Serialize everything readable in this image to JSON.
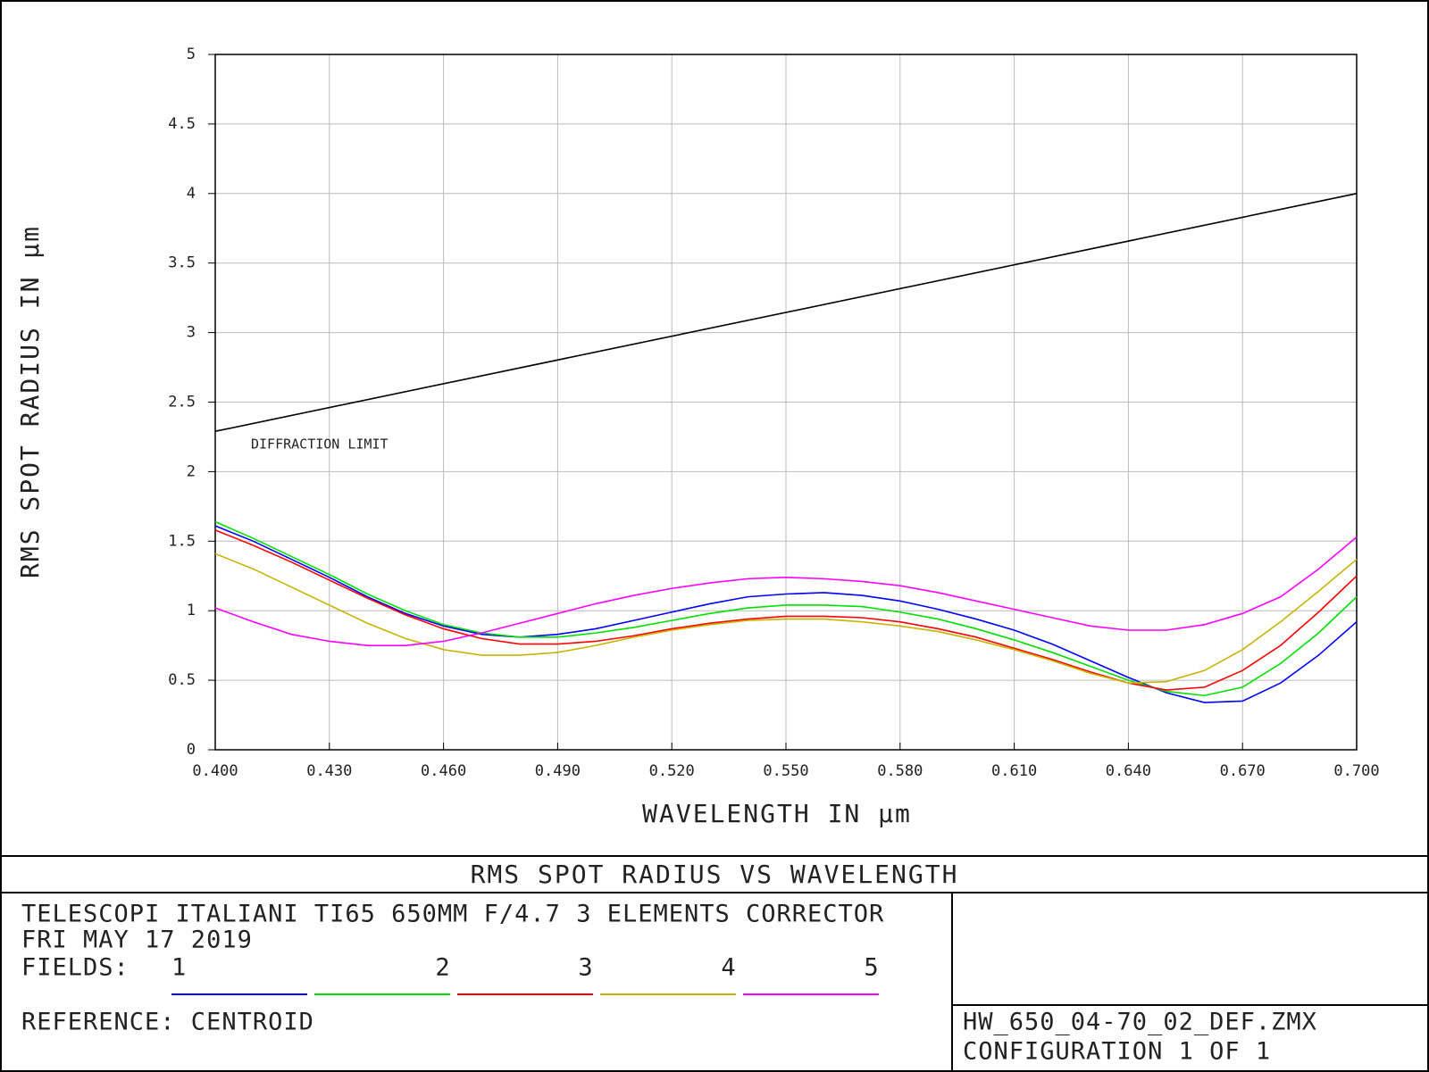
{
  "chart_data": {
    "type": "line",
    "title": "RMS SPOT RADIUS VS WAVELENGTH",
    "x_label": "WAVELENGTH IN µm",
    "y_label": "RMS SPOT RADIUS IN µm",
    "x": [
      0.4,
      0.41,
      0.42,
      0.43,
      0.44,
      0.45,
      0.46,
      0.47,
      0.48,
      0.49,
      0.5,
      0.51,
      0.52,
      0.53,
      0.54,
      0.55,
      0.56,
      0.57,
      0.58,
      0.59,
      0.6,
      0.61,
      0.62,
      0.63,
      0.64,
      0.65,
      0.66,
      0.67,
      0.68,
      0.69,
      0.7
    ],
    "series": [
      {
        "name": "1",
        "color": "#0000ff",
        "values": [
          1.61,
          1.5,
          1.37,
          1.24,
          1.1,
          0.98,
          0.89,
          0.83,
          0.81,
          0.83,
          0.87,
          0.93,
          0.99,
          1.05,
          1.1,
          1.12,
          1.13,
          1.11,
          1.07,
          1.01,
          0.94,
          0.86,
          0.76,
          0.64,
          0.52,
          0.41,
          0.34,
          0.35,
          0.48,
          0.68,
          0.92
        ]
      },
      {
        "name": "2",
        "color": "#00e000",
        "values": [
          1.64,
          1.52,
          1.39,
          1.26,
          1.12,
          1.0,
          0.9,
          0.84,
          0.81,
          0.81,
          0.84,
          0.88,
          0.93,
          0.98,
          1.02,
          1.04,
          1.04,
          1.03,
          0.99,
          0.94,
          0.87,
          0.79,
          0.7,
          0.6,
          0.5,
          0.42,
          0.39,
          0.45,
          0.62,
          0.84,
          1.1
        ]
      },
      {
        "name": "3",
        "color": "#ff0000",
        "values": [
          1.58,
          1.47,
          1.35,
          1.22,
          1.09,
          0.97,
          0.87,
          0.8,
          0.76,
          0.76,
          0.78,
          0.82,
          0.87,
          0.91,
          0.94,
          0.96,
          0.96,
          0.95,
          0.92,
          0.87,
          0.81,
          0.73,
          0.65,
          0.56,
          0.48,
          0.43,
          0.45,
          0.57,
          0.75,
          0.99,
          1.25
        ]
      },
      {
        "name": "4",
        "color": "#c8b400",
        "values": [
          1.41,
          1.3,
          1.17,
          1.04,
          0.91,
          0.8,
          0.72,
          0.68,
          0.68,
          0.7,
          0.75,
          0.81,
          0.86,
          0.9,
          0.93,
          0.94,
          0.94,
          0.92,
          0.89,
          0.85,
          0.79,
          0.72,
          0.64,
          0.55,
          0.48,
          0.49,
          0.57,
          0.72,
          0.92,
          1.14,
          1.37
        ]
      },
      {
        "name": "5",
        "color": "#ff00ff",
        "values": [
          1.02,
          0.92,
          0.83,
          0.78,
          0.75,
          0.75,
          0.78,
          0.84,
          0.91,
          0.98,
          1.05,
          1.11,
          1.16,
          1.2,
          1.23,
          1.24,
          1.23,
          1.21,
          1.18,
          1.13,
          1.07,
          1.01,
          0.95,
          0.89,
          0.86,
          0.86,
          0.9,
          0.98,
          1.1,
          1.3,
          1.53
        ]
      }
    ],
    "diffraction_limit": {
      "name": "DIFFRACTION LIMIT",
      "color": "#000000",
      "x": [
        0.4,
        0.7
      ],
      "values": [
        2.29,
        4.0
      ]
    },
    "xlim": [
      0.4,
      0.7
    ],
    "ylim": [
      0,
      5
    ],
    "xticks": [
      {
        "value": 0.4,
        "label": "0.400"
      },
      {
        "value": 0.43,
        "label": "0.430"
      },
      {
        "value": 0.46,
        "label": "0.460"
      },
      {
        "value": 0.49,
        "label": "0.490"
      },
      {
        "value": 0.52,
        "label": "0.520"
      },
      {
        "value": 0.55,
        "label": "0.550"
      },
      {
        "value": 0.58,
        "label": "0.580"
      },
      {
        "value": 0.61,
        "label": "0.610"
      },
      {
        "value": 0.64,
        "label": "0.640"
      },
      {
        "value": 0.67,
        "label": "0.670"
      },
      {
        "value": 0.7,
        "label": "0.700"
      }
    ],
    "yticks": [
      0,
      0.5,
      1,
      1.5,
      2,
      2.5,
      3,
      3.5,
      4,
      4.5,
      5
    ],
    "grid": true,
    "legend_label": "FIELDS:",
    "description": [
      "TELESCOPI ITALIANI TI65 650MM F/4.7  3 ELEMENTS CORRECTOR",
      "FRI MAY 17 2019"
    ],
    "reference": "REFERENCE: CENTROID",
    "file": "HW_650_04-70_02_DEF.ZMX",
    "configuration": "CONFIGURATION 1 OF 1"
  }
}
